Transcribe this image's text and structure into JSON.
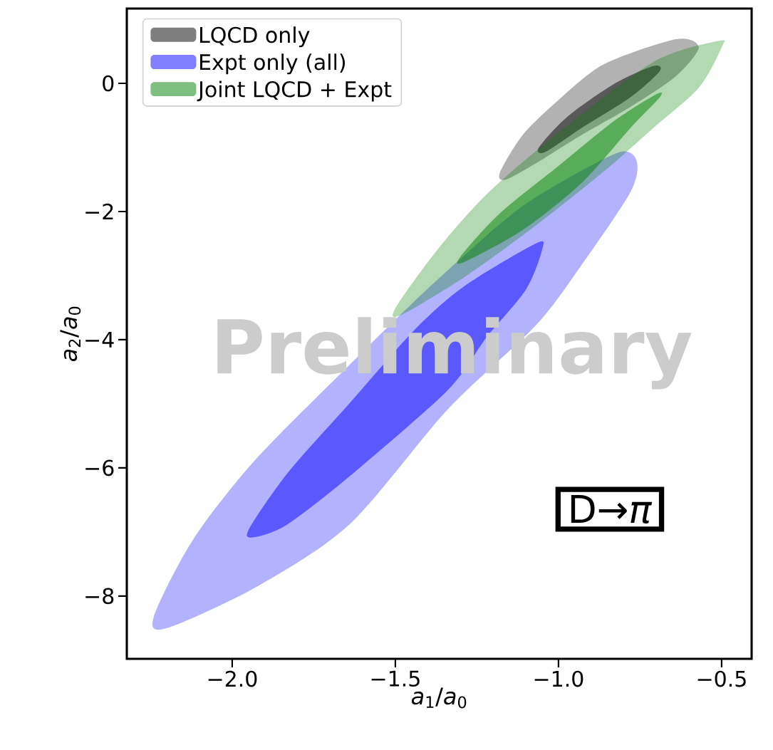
{
  "chart_data": {
    "type": "area",
    "xlabel": "*a*$_{1}$/*a*$_{0}$",
    "ylabel": "*a*$_{2}$/*a*$_{0}$",
    "xlim": [
      -2.323,
      -0.408
    ],
    "ylim": [
      -8.98,
      1.167
    ],
    "xticks": [
      {
        "value": -2.0,
        "label": "−2.0"
      },
      {
        "value": -1.5,
        "label": "−1.5"
      },
      {
        "value": -1.0,
        "label": "−1.0"
      },
      {
        "value": -0.5,
        "label": "−0.5"
      }
    ],
    "yticks": [
      {
        "value": -8,
        "label": "−8"
      },
      {
        "value": -6,
        "label": "−6"
      },
      {
        "value": -4,
        "label": "−4"
      },
      {
        "value": -2,
        "label": "−2"
      },
      0
    ],
    "legend": "top left",
    "annotations": [
      "Preliminary",
      "D→*π*"
    ],
    "series": [
      {
        "color": "#000000",
        "x": [
          -0.64,
          -0.57,
          -0.64,
          -0.78,
          -0.93,
          -1.06,
          -1.16,
          -1.18,
          -1.11,
          -1.0,
          -0.86
        ],
        "values": [
          0.69,
          0.56,
          0.11,
          -0.37,
          -0.81,
          -1.22,
          -1.5,
          -1.4,
          -0.81,
          -0.26,
          0.3
        ]
      },
      {
        "name": "LQCD only",
        "color": "#000000",
        "x": [
          -0.71,
          -0.69,
          -0.78,
          -0.93,
          -1.04,
          -1.06,
          -0.97,
          -0.83
        ],
        "values": [
          0.27,
          0.19,
          -0.22,
          -0.7,
          -1.07,
          -1.0,
          -0.51,
          -0.01
        ]
      },
      {
        "color": "#0000ff",
        "x": [
          -0.81,
          -0.76,
          -0.78,
          -0.93,
          -1.07,
          -1.34,
          -1.64,
          -1.93,
          -2.2,
          -2.24,
          -2.12,
          -1.93,
          -1.64,
          -1.4,
          -1.14,
          -0.97
        ],
        "values": [
          -1.07,
          -1.22,
          -1.7,
          -2.84,
          -3.78,
          -5.09,
          -6.88,
          -7.87,
          -8.5,
          -8.32,
          -7.12,
          -5.88,
          -4.39,
          -3.2,
          -2.03,
          -1.48
        ]
      },
      {
        "name": "Expt only (all)",
        "color": "#0000ff",
        "x": [
          -1.07,
          -1.05,
          -1.1,
          -1.22,
          -1.34,
          -1.64,
          -1.83,
          -1.93,
          -1.95,
          -1.83,
          -1.64,
          -1.44,
          -1.29
        ],
        "values": [
          -2.5,
          -2.59,
          -3.22,
          -3.96,
          -4.79,
          -6.13,
          -6.88,
          -7.08,
          -6.97,
          -6.08,
          -4.99,
          -3.84,
          -3.17
        ]
      },
      {
        "color": "#008000",
        "x": [
          -0.51,
          -0.5,
          -0.57,
          -0.71,
          -0.86,
          -1.07,
          -1.29,
          -1.48,
          -1.5,
          -1.37,
          -1.22,
          -1.01,
          -0.71
        ],
        "values": [
          0.66,
          0.56,
          -0.07,
          -0.7,
          -1.37,
          -2.22,
          -3.03,
          -3.61,
          -3.51,
          -2.59,
          -1.73,
          -0.81,
          0.33
        ]
      },
      {
        "name": "Joint LQCD + Expt",
        "color": "#008000",
        "x": [
          -0.7,
          -0.69,
          -0.78,
          -0.93,
          -1.11,
          -1.29,
          -1.3,
          -1.18,
          -1.0,
          -0.83
        ],
        "values": [
          -0.17,
          -0.22,
          -0.7,
          -1.56,
          -2.29,
          -2.79,
          -2.7,
          -2.03,
          -1.29,
          -0.59
        ]
      }
    ]
  }
}
